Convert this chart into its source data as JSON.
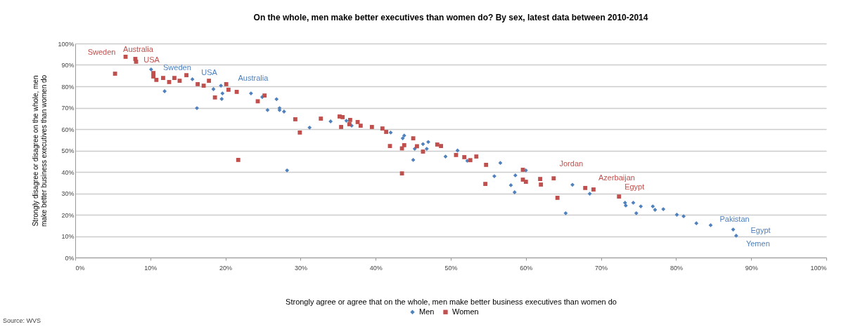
{
  "chart_data": {
    "type": "scatter",
    "title": "On the whole, men make better executives than women do? By sex, latest data between 2010-2014",
    "xlabel": "Strongly agree or agree that on the whole, men make better business executives than women do",
    "ylabel": "Strongly disagree or disagree on the whole, men make better business executives than women do",
    "xlim": [
      0,
      100
    ],
    "ylim": [
      0,
      100
    ],
    "xticks": [
      {
        "value": 0,
        "label": "0%"
      },
      {
        "value": 10,
        "label": "10%"
      },
      {
        "value": 20,
        "label": "20%"
      },
      {
        "value": 30,
        "label": "30%"
      },
      {
        "value": 40,
        "label": "40%"
      },
      {
        "value": 50,
        "label": "50%"
      },
      {
        "value": 60,
        "label": "60%"
      },
      {
        "value": 70,
        "label": "70%"
      },
      {
        "value": 80,
        "label": "80%"
      },
      {
        "value": 90,
        "label": "90%"
      },
      {
        "value": 100,
        "label": "100%"
      }
    ],
    "yticks": [
      {
        "value": 0,
        "label": "0%"
      },
      {
        "value": 10,
        "label": "10%"
      },
      {
        "value": 20,
        "label": "20%"
      },
      {
        "value": 30,
        "label": "30%"
      },
      {
        "value": 40,
        "label": "40%"
      },
      {
        "value": 50,
        "label": "50%"
      },
      {
        "value": 60,
        "label": "60%"
      },
      {
        "value": 70,
        "label": "70%"
      },
      {
        "value": 80,
        "label": "80%"
      },
      {
        "value": 90,
        "label": "90%"
      },
      {
        "value": 100,
        "label": "100%"
      }
    ],
    "grid": "y",
    "legend": "bottom",
    "series": [
      {
        "name": "Men",
        "color": "#4f81bd",
        "marker": "diamond",
        "x": [
          10.1,
          11.9,
          15.6,
          16.2,
          18.4,
          19.4,
          19.6,
          19.5,
          23.4,
          24.9,
          25.6,
          26.8,
          27.2,
          27.2,
          27.8,
          28.2,
          31.2,
          34,
          36.1,
          36.8,
          42,
          43.6,
          43.8,
          45,
          45.2,
          46.3,
          46.8,
          47,
          49.3,
          50.9,
          52.2,
          55.8,
          56.6,
          58,
          58.5,
          58.6,
          60,
          65.3,
          66.2,
          68.5,
          73.2,
          73.3,
          74.3,
          74.7,
          75.3,
          76.9,
          77.2,
          78.3,
          80.1,
          81,
          82.7,
          84.6,
          87.6,
          88
        ],
        "values": [
          87.9,
          77.7,
          83.3,
          69.8,
          78.7,
          80.3,
          76.7,
          74.1,
          76.7,
          75,
          68.9,
          74,
          69.8,
          68.9,
          68.2,
          40.7,
          60.7,
          63.6,
          63.9,
          61.6,
          58.4,
          55.7,
          57,
          45.6,
          50.8,
          53,
          50.8,
          54,
          47.2,
          50,
          45.2,
          38,
          44.2,
          33.8,
          30.5,
          38.4,
          40.7,
          20.7,
          34,
          29.8,
          25.6,
          24.3,
          25.6,
          20.7,
          23.9,
          23.9,
          22.3,
          22.6,
          20,
          19.3,
          16,
          15.1,
          13.1,
          10.2
        ]
      },
      {
        "name": "Women",
        "color": "#c0504d",
        "marker": "square",
        "x": [
          5.3,
          6.7,
          8,
          8.1,
          10.4,
          10.4,
          10.8,
          11.7,
          12.5,
          13.2,
          13.9,
          14.8,
          16.3,
          17.1,
          17.8,
          18.6,
          20.1,
          20.4,
          21.5,
          21.7,
          24.3,
          25.2,
          29.3,
          29.9,
          32.7,
          35.2,
          35.4,
          35.6,
          36.5,
          36.6,
          37.6,
          38,
          39.5,
          40.9,
          41.4,
          41.9,
          43.5,
          43.5,
          43.8,
          45,
          45.5,
          46.3,
          48.2,
          48.7,
          50.7,
          51.8,
          52.6,
          53.4,
          54.6,
          54.7,
          59.6,
          59.6,
          60,
          61.9,
          62,
          63.7,
          64.2,
          67.9,
          69,
          72.4
        ],
        "values": [
          85.9,
          93.8,
          92.8,
          91.5,
          86.2,
          84.6,
          83,
          83.9,
          82,
          83.9,
          82.6,
          85.2,
          81,
          80.3,
          82.6,
          74.8,
          81,
          78.4,
          77.4,
          45.6,
          73,
          75.7,
          64.6,
          58.4,
          64.9,
          65.9,
          61,
          65.6,
          62.3,
          64.3,
          63.3,
          61.6,
          61,
          60.3,
          58.7,
          52.1,
          39.3,
          51,
          52.5,
          55.7,
          52,
          49.5,
          52.8,
          52.1,
          47.9,
          46.9,
          45.5,
          47.2,
          34.4,
          43.3,
          41,
          36.4,
          35.4,
          36.7,
          34.1,
          37,
          27.9,
          32.5,
          31.8,
          28.5
        ]
      }
    ],
    "annotations": [
      {
        "text": "Sweden",
        "x": 6.7,
        "y": 93.8
      },
      {
        "text": "Australia",
        "x": 8,
        "y": 92.8
      },
      {
        "text": "USA",
        "x": 8.1,
        "y": 91.5
      },
      {
        "text": "Sweden",
        "x": 10.1,
        "y": 87.9
      },
      {
        "text": "USA",
        "x": 15.6,
        "y": 83.3
      },
      {
        "text": "Australia",
        "x": 23.4,
        "y": 76.7
      },
      {
        "text": "Jordan",
        "x": 63.7,
        "y": 37
      },
      {
        "text": "Azerbaijan",
        "x": 69,
        "y": 31.8
      },
      {
        "text": "Egypt",
        "x": 72.4,
        "y": 28.5
      },
      {
        "text": "Pakistan",
        "x": 84.6,
        "y": 15.1
      },
      {
        "text": "Egypt",
        "x": 87.6,
        "y": 13.1
      },
      {
        "text": "Yemen",
        "x": 88,
        "y": 10.2
      },
      "Source: WVS"
    ]
  }
}
